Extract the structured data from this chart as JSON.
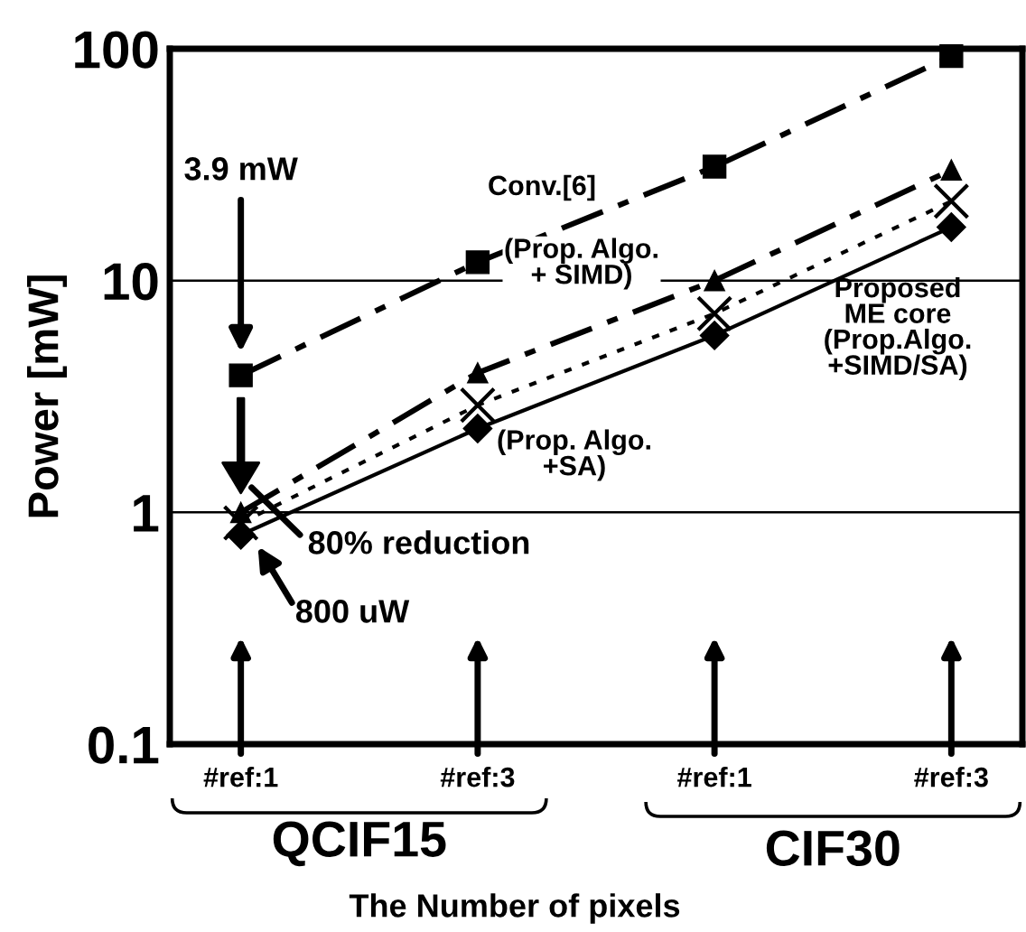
{
  "chart_data": {
    "type": "line",
    "ylabel": "Power [mW]",
    "xlabel": "The Number of pixels",
    "log": "y",
    "ylim": [
      0.1,
      100
    ],
    "yticks": [
      0.1,
      1,
      10,
      100
    ],
    "categories": [
      "#ref:1",
      "#ref:3",
      "#ref:1",
      "#ref:3"
    ],
    "grid": "y",
    "series": [
      {
        "name": "Conv.[6]",
        "color": "#000000",
        "marker": "square",
        "line_style": "dashed",
        "values": [
          3.9,
          12,
          31,
          93
        ]
      },
      {
        "name": "(Prop. Algo.\n+ SIMD)",
        "color": "#000000",
        "marker": "triangle",
        "line_style": "dashed",
        "values": [
          1.0,
          4.0,
          10,
          30
        ]
      },
      {
        "name": "(Prop. Algo.\n+SA)",
        "color": "#000000",
        "marker": "cross",
        "line_style": "dotted",
        "values": [
          0.9,
          2.9,
          7.2,
          22
        ]
      },
      {
        "name": "Proposed\nME core\n(Prop.Algo.\n+SIMD/SA)",
        "color": "#000000",
        "marker": "diamond",
        "line_style": "solid",
        "values": [
          0.8,
          2.3,
          5.8,
          17
        ]
      }
    ],
    "annotations": [
      "3.9 mW",
      "80% reduction",
      "800 uW",
      "QCIF15",
      "CIF30"
    ]
  }
}
